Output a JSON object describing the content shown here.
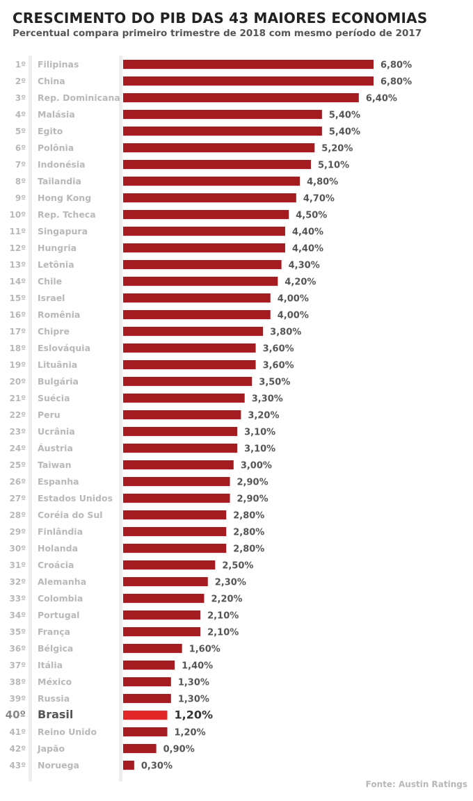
{
  "chart_data": {
    "type": "bar",
    "orientation": "horizontal",
    "title": "CRESCIMENTO DO PIB DAS 43 MAIORES ECONOMIAS",
    "subtitle": "Percentual compara primeiro trimestre de 2018 com mesmo período de 2017",
    "source": "Fonte: Austin Ratings",
    "xlim": [
      0,
      6.8
    ],
    "highlight": "Brasil",
    "colors": {
      "bar": "#a51c20",
      "highlight": "#e02626"
    },
    "ranks": [
      "1º",
      "2º",
      "3º",
      "4º",
      "5º",
      "6º",
      "7º",
      "8º",
      "9º",
      "10º",
      "11º",
      "12º",
      "13º",
      "14º",
      "15º",
      "16º",
      "17º",
      "18º",
      "19º",
      "20º",
      "21º",
      "22º",
      "23º",
      "24º",
      "25º",
      "26º",
      "27º",
      "28º",
      "29º",
      "30º",
      "31º",
      "32º",
      "33º",
      "34º",
      "35º",
      "36º",
      "37º",
      "38º",
      "39º",
      "40º",
      "41º",
      "42º",
      "43º"
    ],
    "categories": [
      "Filipinas",
      "China",
      "Rep. Dominicana",
      "Malásia",
      "Egito",
      "Polônia",
      "Indonésia",
      "Tailandia",
      "Hong Kong",
      "Rep. Tcheca",
      "Singapura",
      "Hungria",
      "Letônia",
      "Chile",
      "Israel",
      "Romênia",
      "Chipre",
      "Eslováquia",
      "Lituânia",
      "Bulgária",
      "Suécia",
      "Peru",
      "Ucrânia",
      "Áustria",
      "Taiwan",
      "Espanha",
      "Estados Unidos",
      "Coréia do Sul",
      "Finlândia",
      "Holanda",
      "Croácia",
      "Alemanha",
      "Colombia",
      "Portugal",
      "França",
      "Bélgica",
      "Itália",
      "México",
      "Russia",
      "Brasil",
      "Reino Unido",
      "Japão",
      "Noruega"
    ],
    "values": [
      6.8,
      6.8,
      6.4,
      5.4,
      5.4,
      5.2,
      5.1,
      4.8,
      4.7,
      4.5,
      4.4,
      4.4,
      4.3,
      4.2,
      4.0,
      4.0,
      3.8,
      3.6,
      3.6,
      3.5,
      3.3,
      3.2,
      3.1,
      3.1,
      3.0,
      2.9,
      2.9,
      2.8,
      2.8,
      2.8,
      2.5,
      2.3,
      2.2,
      2.1,
      2.1,
      1.6,
      1.4,
      1.3,
      1.3,
      1.2,
      1.2,
      0.9,
      0.3
    ],
    "labels": [
      "6,80%",
      "6,80%",
      "6,40%",
      "5,40%",
      "5,40%",
      "5,20%",
      "5,10%",
      "4,80%",
      "4,70%",
      "4,50%",
      "4,40%",
      "4,40%",
      "4,30%",
      "4,20%",
      "4,00%",
      "4,00%",
      "3,80%",
      "3,60%",
      "3,60%",
      "3,50%",
      "3,30%",
      "3,20%",
      "3,10%",
      "3,10%",
      "3,00%",
      "2,90%",
      "2,90%",
      "2,80%",
      "2,80%",
      "2,80%",
      "2,50%",
      "2,30%",
      "2,20%",
      "2,10%",
      "2,10%",
      "1,60%",
      "1,40%",
      "1,30%",
      "1,30%",
      "1,20%",
      "1,20%",
      "0,90%",
      "0,30%"
    ]
  }
}
